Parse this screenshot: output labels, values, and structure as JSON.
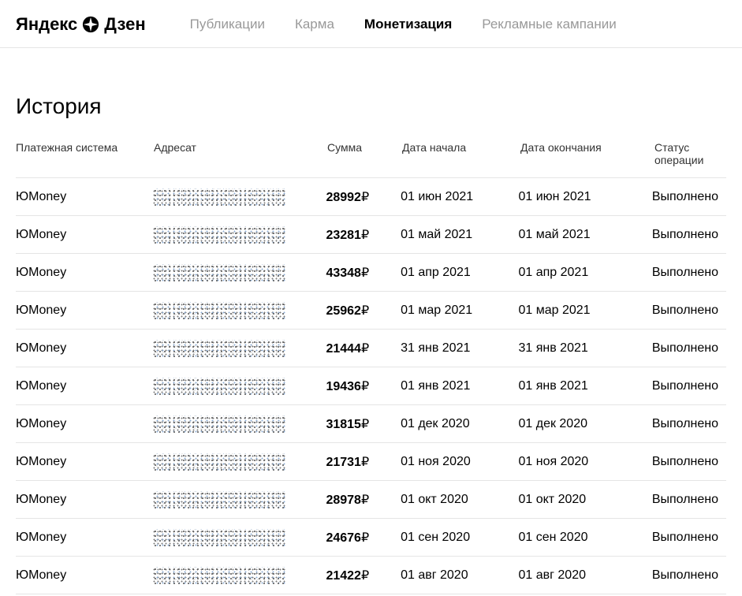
{
  "header": {
    "logo_part1": "Яндекс",
    "logo_part2": "Дзен",
    "nav": [
      {
        "label": "Публикации",
        "active": false
      },
      {
        "label": "Карма",
        "active": false
      },
      {
        "label": "Монетизация",
        "active": true
      },
      {
        "label": "Рекламные кампании",
        "active": false
      }
    ]
  },
  "page_title": "История",
  "table": {
    "columns": {
      "system": "Платежная система",
      "recipient": "Адресат",
      "amount": "Сумма",
      "start_date": "Дата начала",
      "end_date": "Дата окончания",
      "status": "Статус операции"
    },
    "currency_symbol": "₽",
    "rows": [
      {
        "system": "ЮMoney",
        "amount": "28992",
        "start": "01 июн 2021",
        "end": "01 июн 2021",
        "status": "Выполнено"
      },
      {
        "system": "ЮMoney",
        "amount": "23281",
        "start": "01 май 2021",
        "end": "01 май 2021",
        "status": "Выполнено"
      },
      {
        "system": "ЮMoney",
        "amount": "43348",
        "start": "01 апр 2021",
        "end": "01 апр 2021",
        "status": "Выполнено"
      },
      {
        "system": "ЮMoney",
        "amount": "25962",
        "start": "01 мар 2021",
        "end": "01 мар 2021",
        "status": "Выполнено"
      },
      {
        "system": "ЮMoney",
        "amount": "21444",
        "start": "31 янв 2021",
        "end": "31 янв 2021",
        "status": "Выполнено"
      },
      {
        "system": "ЮMoney",
        "amount": "19436",
        "start": "01 янв 2021",
        "end": "01 янв 2021",
        "status": "Выполнено"
      },
      {
        "system": "ЮMoney",
        "amount": "31815",
        "start": "01 дек 2020",
        "end": "01 дек 2020",
        "status": "Выполнено"
      },
      {
        "system": "ЮMoney",
        "amount": "21731",
        "start": "01 ноя 2020",
        "end": "01 ноя 2020",
        "status": "Выполнено"
      },
      {
        "system": "ЮMoney",
        "amount": "28978",
        "start": "01 окт 2020",
        "end": "01 окт 2020",
        "status": "Выполнено"
      },
      {
        "system": "ЮMoney",
        "amount": "24676",
        "start": "01 сен 2020",
        "end": "01 сен 2020",
        "status": "Выполнено"
      },
      {
        "system": "ЮMoney",
        "amount": "21422",
        "start": "01 авг 2020",
        "end": "01 авг 2020",
        "status": "Выполнено"
      }
    ]
  },
  "colors": {
    "background": "#ffffff",
    "text_primary": "#000000",
    "text_secondary": "#999999",
    "border": "#e5e5e5"
  }
}
